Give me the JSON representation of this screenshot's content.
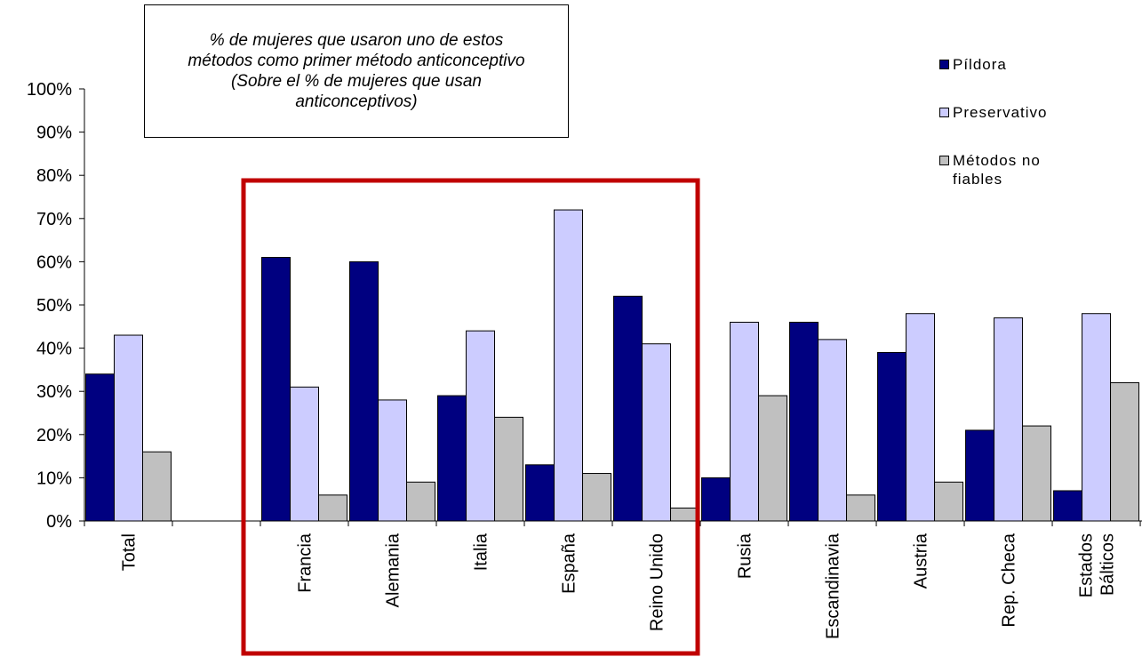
{
  "chart_data": {
    "type": "bar",
    "title": "% de mujeres que usaron uno de estos\nmétodos como primer método anticonceptivo\n(Sobre el % de mujeres que usan\nanticonceptivos)",
    "categories": [
      "Total",
      "",
      "Francia",
      "Alemania",
      "Italia",
      "España",
      "Reino Unido",
      "Rusia",
      "Escandinavia",
      "Austria",
      "Rep. Checa",
      "Estados\nBálticos"
    ],
    "series": [
      {
        "name": "Píldora",
        "color": "#000080",
        "values": [
          34,
          null,
          61,
          60,
          29,
          13,
          52,
          10,
          46,
          39,
          21,
          7
        ]
      },
      {
        "name": "Preservativo",
        "color": "#ccccff",
        "values": [
          43,
          null,
          31,
          28,
          44,
          72,
          41,
          46,
          42,
          48,
          47,
          48
        ]
      },
      {
        "name": "Métodos no\nfiables",
        "color": "#c0c0c0",
        "values": [
          16,
          null,
          6,
          9,
          24,
          11,
          3,
          29,
          6,
          9,
          22,
          32
        ]
      }
    ],
    "ylim": [
      0,
      100
    ],
    "yticks": [
      "0%",
      "10%",
      "20%",
      "30%",
      "40%",
      "50%",
      "60%",
      "70%",
      "80%",
      "90%",
      "100%"
    ],
    "xlabel": "",
    "ylabel": "",
    "grid": false,
    "legend_position": "top-right",
    "highlight": {
      "from": "Francia",
      "to": "Reino Unido",
      "color": "#c00000"
    }
  }
}
